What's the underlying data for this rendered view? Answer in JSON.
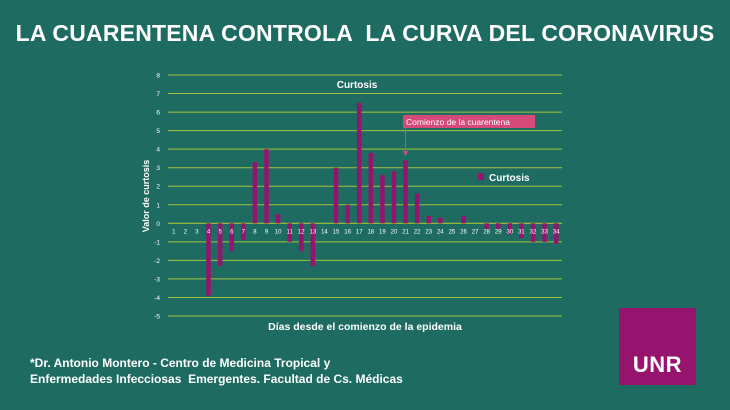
{
  "headline": "LA CUARENTENA CONTROLA  LA CURVA DEL CORONAVIRUS",
  "credit": {
    "line1": "*Dr. Antonio Montero - Centro de Medicina Tropical y",
    "line2": "Enfermedades Infecciosas  Emergentes. Facultad de Cs. Médicas"
  },
  "logo": {
    "text": "UNR"
  },
  "colors": {
    "background": "#1e6b62",
    "bar": "#97146e",
    "grid": "#a6c23a",
    "annotation_bg": "#d64a7a",
    "text": "#ffffff"
  },
  "chart_data": {
    "type": "bar",
    "title": "Curtosis",
    "xlabel": "Días desde el comienzo de la epidemia",
    "ylabel": "Valor de curtosis",
    "ylim": [
      -5,
      8
    ],
    "yticks": [
      -5,
      -4,
      -3,
      -2,
      -1,
      0,
      1,
      2,
      3,
      4,
      5,
      6,
      7,
      8
    ],
    "grid": true,
    "legend_position": "right",
    "categories": [
      "1",
      "2",
      "3",
      "4",
      "5",
      "6",
      "7",
      "8",
      "9",
      "10",
      "11",
      "12",
      "13",
      "14",
      "15",
      "16",
      "17",
      "18",
      "19",
      "20",
      "21",
      "22",
      "23",
      "24",
      "25",
      "26",
      "27",
      "28",
      "29",
      "30",
      "31",
      "32",
      "33",
      "34"
    ],
    "series": [
      {
        "name": "Curtosis",
        "values": [
          0,
          0,
          0,
          -3.9,
          -2.3,
          -1.5,
          -0.9,
          3.3,
          4.0,
          0.5,
          -1.0,
          -1.5,
          -2.3,
          0,
          3.0,
          1.0,
          6.5,
          3.8,
          2.6,
          2.8,
          3.4,
          1.6,
          0.4,
          0.3,
          0,
          0.4,
          0,
          -0.3,
          -0.3,
          -0.6,
          -0.8,
          -1.0,
          -1.0,
          -1.1
        ]
      }
    ],
    "annotation": {
      "text": "Comienzo de la cuarentena",
      "category": "21"
    }
  }
}
